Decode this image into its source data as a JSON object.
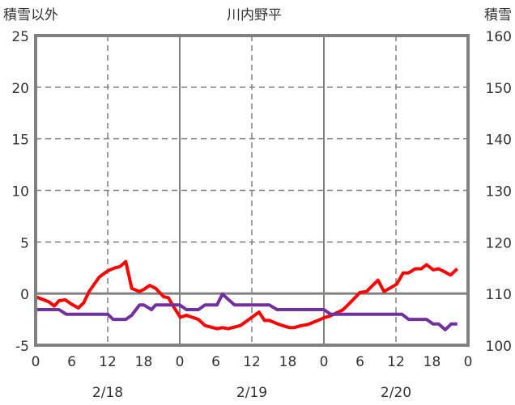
{
  "chart_data": {
    "type": "line",
    "title": "川内野平",
    "ylabel_left": "積雪以外",
    "ylabel_right": "積雪",
    "ylim_left": [
      -5,
      25
    ],
    "yticks_left": [
      -5,
      0,
      5,
      10,
      15,
      20,
      25
    ],
    "ylim_right": [
      100,
      160
    ],
    "yticks_right": [
      100,
      110,
      120,
      130,
      140,
      150,
      160
    ],
    "xlim_hours": [
      0,
      72
    ],
    "xtick_labels": [
      "0",
      "6",
      "12",
      "18",
      "0",
      "6",
      "12",
      "18",
      "0",
      "6",
      "12",
      "18",
      "0"
    ],
    "date_labels": [
      {
        "hour": 12,
        "label": "2/18"
      },
      {
        "hour": 36,
        "label": "2/19"
      },
      {
        "hour": 60,
        "label": "2/20"
      }
    ],
    "grid": true,
    "series": [
      {
        "name": "積雪以外",
        "axis": "left",
        "color": "#ff0000",
        "points": [
          [
            0,
            -0.3
          ],
          [
            2.2,
            -0.8
          ],
          [
            3.1,
            -1.2
          ],
          [
            3.9,
            -0.7
          ],
          [
            4.9,
            -0.6
          ],
          [
            5.9,
            -1.0
          ],
          [
            7.1,
            -1.4
          ],
          [
            8,
            -0.9
          ],
          [
            8.9,
            0.2
          ],
          [
            10.6,
            1.6
          ],
          [
            12,
            2.2
          ],
          [
            13.2,
            2.5
          ],
          [
            14,
            2.6
          ],
          [
            15,
            3.1
          ],
          [
            16,
            0.5
          ],
          [
            17.3,
            0.2
          ],
          [
            18,
            0.4
          ],
          [
            19,
            0.8
          ],
          [
            20,
            0.5
          ],
          [
            21.3,
            -0.3
          ],
          [
            22.1,
            -0.4
          ],
          [
            23,
            -1.3
          ],
          [
            24.1,
            -2.3
          ],
          [
            25.1,
            -2.1
          ],
          [
            27.1,
            -2.5
          ],
          [
            28.2,
            -3.1
          ],
          [
            30.2,
            -3.4
          ],
          [
            31.1,
            -3.3
          ],
          [
            32.1,
            -3.4
          ],
          [
            34.1,
            -3.1
          ],
          [
            37.2,
            -1.8
          ],
          [
            38.1,
            -2.6
          ],
          [
            38.9,
            -2.6
          ],
          [
            40.6,
            -3.0
          ],
          [
            42.3,
            -3.3
          ],
          [
            43,
            -3.3
          ],
          [
            44.3,
            -3.1
          ],
          [
            45.3,
            -3.0
          ],
          [
            47,
            -2.6
          ],
          [
            48.2,
            -2.3
          ],
          [
            48.9,
            -2.2
          ],
          [
            50,
            -1.9
          ],
          [
            51.1,
            -1.6
          ],
          [
            52,
            -1.1
          ],
          [
            54,
            0.1
          ],
          [
            55.1,
            0.2
          ],
          [
            57,
            1.3
          ],
          [
            58,
            0.2
          ],
          [
            60.1,
            0.9
          ],
          [
            61.2,
            2.0
          ],
          [
            62.1,
            2.0
          ],
          [
            63.2,
            2.4
          ],
          [
            64.2,
            2.4
          ],
          [
            65.1,
            2.8
          ],
          [
            66.2,
            2.3
          ],
          [
            67.1,
            2.4
          ],
          [
            69.1,
            1.8
          ],
          [
            70.2,
            2.4
          ]
        ]
      },
      {
        "name": "積雪",
        "axis": "right",
        "color": "#7030a0",
        "points": [
          [
            0,
            106.9
          ],
          [
            3.9,
            106.9
          ],
          [
            5.1,
            106
          ],
          [
            12,
            106
          ],
          [
            12.9,
            105
          ],
          [
            15,
            105
          ],
          [
            16,
            105.8
          ],
          [
            17.3,
            107.8
          ],
          [
            18,
            107.8
          ],
          [
            19.3,
            106.9
          ],
          [
            20,
            107.8
          ],
          [
            24,
            107.8
          ],
          [
            25.1,
            106.9
          ],
          [
            27.1,
            106.9
          ],
          [
            28.2,
            107.8
          ],
          [
            30.2,
            107.8
          ],
          [
            31.1,
            109.9
          ],
          [
            33.1,
            107.8
          ],
          [
            38.9,
            107.8
          ],
          [
            40.2,
            106.9
          ],
          [
            48,
            106.9
          ],
          [
            49.1,
            106
          ],
          [
            61,
            106
          ],
          [
            62.1,
            105
          ],
          [
            65.1,
            105
          ],
          [
            66.2,
            104.1
          ],
          [
            67.1,
            104.1
          ],
          [
            68.2,
            103
          ],
          [
            69.2,
            104.1
          ],
          [
            70.2,
            104.1
          ]
        ]
      }
    ]
  }
}
